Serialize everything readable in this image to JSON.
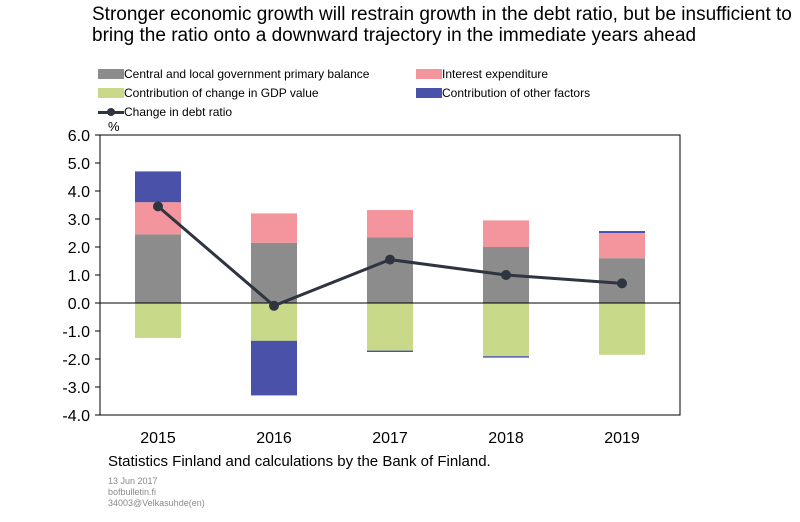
{
  "title": "Stronger economic growth will restrain growth in the debt ratio, but be insufficient to bring the ratio onto a downward trajectory in the immediate years ahead",
  "unit": "%",
  "source": "Statistics Finland and calculations by the Bank of Finland.",
  "footer": [
    "13 Jun 2017",
    "bofbulletin.fi",
    "34003@Velkasuhde(en)"
  ],
  "legend": [
    {
      "name": "Central and local government primary balance",
      "color": "#8c8c8c",
      "kind": "bar"
    },
    {
      "name": "Interest expenditure",
      "color": "#f4949c",
      "kind": "bar"
    },
    {
      "name": "Contribution of change in GDP value",
      "color": "#c8d98a",
      "kind": "bar"
    },
    {
      "name": "Contribution of other factors",
      "color": "#4a51a8",
      "kind": "bar"
    },
    {
      "name": "Change in debt ratio",
      "color": "#2e3540",
      "kind": "line"
    }
  ],
  "chart_data": {
    "type": "bar",
    "stacked": true,
    "categories": [
      "2015",
      "2016",
      "2017",
      "2018",
      "2019"
    ],
    "ylim": [
      -4.0,
      6.0
    ],
    "yticks": [
      "6.0",
      "5.0",
      "4.0",
      "3.0",
      "2.0",
      "1.0",
      "0.0",
      "-1.0",
      "-2.0",
      "-3.0",
      "-4.0"
    ],
    "ylabel": "%",
    "series": [
      {
        "name": "Central and local government primary balance",
        "color": "#8c8c8c",
        "values": [
          2.45,
          2.15,
          2.35,
          2.0,
          1.6
        ]
      },
      {
        "name": "Interest expenditure",
        "color": "#f4949c",
        "values": [
          1.15,
          1.05,
          0.97,
          0.95,
          0.9
        ]
      },
      {
        "name": "Contribution of change in GDP value",
        "color": "#c8d98a",
        "values": [
          -1.25,
          -1.35,
          -1.7,
          -1.9,
          -1.85
        ]
      },
      {
        "name": "Contribution of other factors",
        "color": "#4a51a8",
        "values": [
          1.1,
          -1.95,
          -0.05,
          -0.05,
          0.07
        ]
      }
    ],
    "line": {
      "name": "Change in debt ratio",
      "color": "#2e3540",
      "values": [
        3.45,
        -0.1,
        1.55,
        1.0,
        0.7
      ]
    }
  }
}
